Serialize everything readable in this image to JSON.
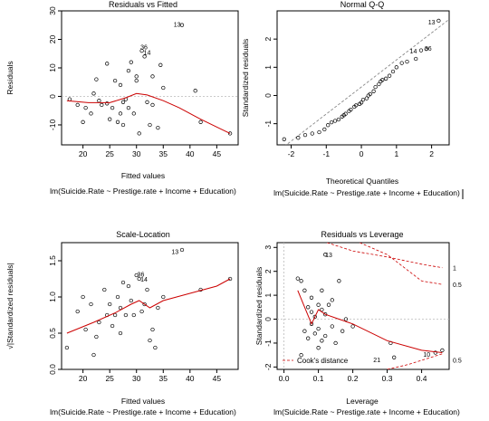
{
  "figure": {
    "background": "#ffffff",
    "line_color": "#cc0000",
    "point_color": "#000000",
    "reference_line_color": "#bbbbbb"
  },
  "chart_data": [
    {
      "id": "p1",
      "type": "scatter",
      "title": "Residuals vs Fitted",
      "xlabel": "Fitted values",
      "ylabel": "Residuals",
      "caption": "lm(Suicide.Rate ~ Prestige.rate + Income + Education)",
      "xlim": [
        16,
        49
      ],
      "ylim": [
        -17,
        30
      ],
      "xticks": [
        20,
        25,
        30,
        35,
        40,
        45
      ],
      "xtick_labels": [
        "20",
        "25",
        "30",
        "35",
        "40",
        "45"
      ],
      "yticks": [
        -10,
        0,
        10,
        20,
        30
      ],
      "ytick_labels": [
        "-10",
        "0",
        "10",
        "20",
        "30"
      ],
      "hline": 0,
      "points": [
        [
          17.5,
          -1
        ],
        [
          19,
          -3
        ],
        [
          20,
          -9
        ],
        [
          20.5,
          -4
        ],
        [
          21.5,
          -6
        ],
        [
          22,
          1
        ],
        [
          22.5,
          6
        ],
        [
          23,
          -1.5
        ],
        [
          23.5,
          -3
        ],
        [
          24.5,
          11.5
        ],
        [
          24.5,
          -2.5
        ],
        [
          25,
          -8
        ],
        [
          25.5,
          -4
        ],
        [
          26,
          5.5
        ],
        [
          26.5,
          -9
        ],
        [
          27,
          -6
        ],
        [
          27,
          4
        ],
        [
          27.5,
          -10
        ],
        [
          27.5,
          -2
        ],
        [
          28,
          -1
        ],
        [
          28.5,
          9
        ],
        [
          28.5,
          -4
        ],
        [
          29,
          12
        ],
        [
          29.5,
          -6
        ],
        [
          30,
          7
        ],
        [
          30,
          5.5
        ],
        [
          30.5,
          -13
        ],
        [
          31,
          16
        ],
        [
          31.5,
          14
        ],
        [
          32,
          -2
        ],
        [
          32.5,
          -10
        ],
        [
          33,
          7
        ],
        [
          33,
          -3
        ],
        [
          34,
          -11
        ],
        [
          34.5,
          11
        ],
        [
          35,
          3
        ],
        [
          38.5,
          25
        ],
        [
          41,
          2
        ],
        [
          42,
          -9
        ],
        [
          47.5,
          -13
        ]
      ],
      "point_labels": [
        {
          "text": "13",
          "x": 37.6,
          "y": 25.4
        },
        {
          "text": "36",
          "x": 31.4,
          "y": 17.4
        },
        {
          "text": "14",
          "x": 32,
          "y": 15.6
        }
      ],
      "smooth": [
        [
          17,
          -1.5
        ],
        [
          21,
          -2.2
        ],
        [
          25,
          -2.2
        ],
        [
          28,
          -0.5
        ],
        [
          30,
          1
        ],
        [
          32,
          0.5
        ],
        [
          35,
          -1.5
        ],
        [
          38,
          -4
        ],
        [
          42,
          -8
        ],
        [
          47.5,
          -13
        ]
      ],
      "smooth_label": "",
      "hline_label": ""
    },
    {
      "id": "p2",
      "type": "scatter",
      "title": "Normal Q-Q",
      "xlabel": "Theoretical Quantiles",
      "ylabel": "Standardized residuals",
      "caption": "lm(Suicide.Rate ~ Prestige.rate + Income + Education)",
      "xlim": [
        -2.4,
        2.5
      ],
      "ylim": [
        -1.75,
        3.0
      ],
      "xticks": [
        -2,
        -1,
        0,
        1,
        2
      ],
      "xtick_labels": [
        "-2",
        "-1",
        "0",
        "1",
        "2"
      ],
      "yticks": [
        -1,
        0,
        1,
        2
      ],
      "ytick_labels": [
        "-1",
        "0",
        "1",
        "2"
      ],
      "diag": [
        [
          -2.4,
          -2.0
        ],
        [
          2.5,
          2.7
        ]
      ],
      "points": [
        [
          -2.2,
          -1.55
        ],
        [
          -1.8,
          -1.5
        ],
        [
          -1.6,
          -1.4
        ],
        [
          -1.4,
          -1.35
        ],
        [
          -1.2,
          -1.3
        ],
        [
          -1.05,
          -1.2
        ],
        [
          -0.95,
          -1.05
        ],
        [
          -0.85,
          -0.95
        ],
        [
          -0.75,
          -0.9
        ],
        [
          -0.65,
          -0.85
        ],
        [
          -0.55,
          -0.75
        ],
        [
          -0.5,
          -0.7
        ],
        [
          -0.45,
          -0.65
        ],
        [
          -0.35,
          -0.55
        ],
        [
          -0.3,
          -0.5
        ],
        [
          -0.2,
          -0.4
        ],
        [
          -0.15,
          -0.35
        ],
        [
          -0.05,
          -0.3
        ],
        [
          0,
          -0.25
        ],
        [
          0.05,
          -0.15
        ],
        [
          0.15,
          -0.1
        ],
        [
          0.2,
          0
        ],
        [
          0.25,
          0.05
        ],
        [
          0.35,
          0.15
        ],
        [
          0.4,
          0.3
        ],
        [
          0.5,
          0.4
        ],
        [
          0.55,
          0.5
        ],
        [
          0.6,
          0.55
        ],
        [
          0.7,
          0.6
        ],
        [
          0.8,
          0.7
        ],
        [
          0.9,
          0.85
        ],
        [
          1.0,
          1.0
        ],
        [
          1.15,
          1.15
        ],
        [
          1.3,
          1.2
        ],
        [
          1.55,
          1.3
        ],
        [
          1.7,
          1.6
        ],
        [
          1.85,
          1.65
        ],
        [
          2.2,
          2.65
        ]
      ],
      "point_labels": [
        {
          "text": "13",
          "x": 2.0,
          "y": 2.62
        },
        {
          "text": "14",
          "x": 1.48,
          "y": 1.58
        },
        {
          "text": "36",
          "x": 1.9,
          "y": 1.68
        }
      ]
    },
    {
      "id": "p3",
      "type": "scatter",
      "title": "Scale-Location",
      "xlabel": "Fitted values",
      "ylabel": "√|Standardized residuals|",
      "caption": "lm(Suicide.Rate ~ Prestige.rate + Income + Education)",
      "xlim": [
        16,
        49
      ],
      "ylim": [
        0,
        1.75
      ],
      "xticks": [
        20,
        25,
        30,
        35,
        40,
        45
      ],
      "xtick_labels": [
        "20",
        "25",
        "30",
        "35",
        "40",
        "45"
      ],
      "yticks": [
        0.0,
        0.5,
        1.0,
        1.5
      ],
      "ytick_labels": [
        "0.0",
        "0.5",
        "1.0",
        "1.5"
      ],
      "points": [
        [
          17,
          0.3
        ],
        [
          19,
          0.8
        ],
        [
          20,
          1.0
        ],
        [
          20.5,
          0.55
        ],
        [
          21.5,
          0.9
        ],
        [
          22,
          0.2
        ],
        [
          22.5,
          0.45
        ],
        [
          23,
          0.65
        ],
        [
          24,
          1.1
        ],
        [
          24.5,
          0.75
        ],
        [
          25,
          0.9
        ],
        [
          25.5,
          0.6
        ],
        [
          26,
          0.75
        ],
        [
          26.5,
          1.0
        ],
        [
          27,
          0.5
        ],
        [
          27,
          0.85
        ],
        [
          27.5,
          1.2
        ],
        [
          28,
          0.75
        ],
        [
          28.5,
          1.15
        ],
        [
          29,
          0.95
        ],
        [
          29.5,
          0.75
        ],
        [
          30,
          1.3
        ],
        [
          30.5,
          1.25
        ],
        [
          31,
          0.8
        ],
        [
          31.5,
          0.9
        ],
        [
          32,
          1.1
        ],
        [
          32.5,
          0.4
        ],
        [
          33,
          0.55
        ],
        [
          33.5,
          0.3
        ],
        [
          34,
          0.85
        ],
        [
          35,
          1.0
        ],
        [
          38.5,
          1.65
        ],
        [
          42,
          1.1
        ],
        [
          47.5,
          1.25
        ]
      ],
      "point_labels": [
        {
          "text": "13",
          "x": 37.2,
          "y": 1.63
        },
        {
          "text": "36",
          "x": 30.8,
          "y": 1.32
        },
        {
          "text": "14",
          "x": 31.4,
          "y": 1.25
        }
      ],
      "smooth": [
        [
          17,
          0.5
        ],
        [
          22,
          0.65
        ],
        [
          26,
          0.78
        ],
        [
          29,
          0.9
        ],
        [
          30.5,
          0.95
        ],
        [
          32.5,
          0.85
        ],
        [
          35,
          0.95
        ],
        [
          40,
          1.05
        ],
        [
          45,
          1.15
        ],
        [
          47.5,
          1.25
        ]
      ]
    },
    {
      "id": "p4",
      "type": "scatter",
      "title": "Residuals vs Leverage",
      "xlabel": "Leverage",
      "ylabel": "Standardized residuals",
      "caption": "lm(Suicide.Rate ~ Prestige.rate + Income + Education)",
      "xlim": [
        -0.02,
        0.48
      ],
      "ylim": [
        -2.1,
        3.2
      ],
      "xticks": [
        0.0,
        0.1,
        0.2,
        0.3,
        0.4
      ],
      "xtick_labels": [
        "0.0",
        "0.1",
        "0.2",
        "0.3",
        "0.4"
      ],
      "yticks": [
        -2,
        -1,
        0,
        1,
        2,
        3
      ],
      "ytick_labels": [
        "-2",
        "-1",
        "0",
        "1",
        "2",
        "3"
      ],
      "hline": 0,
      "vline": 0,
      "points": [
        [
          0.04,
          1.7
        ],
        [
          0.05,
          1.6
        ],
        [
          0.06,
          1.2
        ],
        [
          0.06,
          -0.5
        ],
        [
          0.07,
          0.5
        ],
        [
          0.07,
          -0.8
        ],
        [
          0.08,
          0.3
        ],
        [
          0.08,
          -0.2
        ],
        [
          0.08,
          0.9
        ],
        [
          0.09,
          -0.6
        ],
        [
          0.09,
          0.1
        ],
        [
          0.1,
          0.6
        ],
        [
          0.1,
          -0.4
        ],
        [
          0.1,
          -1.2
        ],
        [
          0.11,
          0.4
        ],
        [
          0.11,
          -0.9
        ],
        [
          0.12,
          0.2
        ],
        [
          0.12,
          -0.7
        ],
        [
          0.13,
          0.6
        ],
        [
          0.14,
          -0.3
        ],
        [
          0.14,
          0.8
        ],
        [
          0.15,
          -1.0
        ],
        [
          0.16,
          1.6
        ],
        [
          0.17,
          -0.5
        ],
        [
          0.18,
          0.0
        ],
        [
          0.2,
          -0.3
        ],
        [
          0.12,
          2.7
        ],
        [
          0.31,
          -1.0
        ],
        [
          0.32,
          -1.6
        ],
        [
          0.44,
          -1.4
        ],
        [
          0.46,
          -1.3
        ],
        [
          0.05,
          -1.5
        ],
        [
          0.11,
          1.2
        ]
      ],
      "point_labels": [
        {
          "text": "13",
          "x": 0.13,
          "y": 2.7
        },
        {
          "text": "21",
          "x": 0.27,
          "y": -1.68
        },
        {
          "text": "10",
          "x": 0.415,
          "y": -1.45
        }
      ],
      "smooth": [
        [
          0.04,
          1.2
        ],
        [
          0.08,
          -0.2
        ],
        [
          0.1,
          0.4
        ],
        [
          0.12,
          0.2
        ],
        [
          0.16,
          0.0
        ],
        [
          0.2,
          -0.2
        ],
        [
          0.3,
          -0.9
        ],
        [
          0.4,
          -1.3
        ],
        [
          0.46,
          -1.4
        ]
      ],
      "cook_lines": [
        {
          "level": "1",
          "sign": 1,
          "pts": [
            [
              0.125,
              3.2
            ],
            [
              0.2,
              2.85
            ],
            [
              0.3,
              2.6
            ],
            [
              0.4,
              2.3
            ],
            [
              0.46,
              2.15
            ]
          ]
        },
        {
          "level": "0.5",
          "sign": 1,
          "pts": [
            [
              0.22,
              3.2
            ],
            [
              0.3,
              2.7
            ],
            [
              0.4,
              1.6
            ],
            [
              0.46,
              1.45
            ]
          ]
        },
        {
          "level": "0.5",
          "sign": -1,
          "pts": [
            [
              0.3,
              -2.1
            ],
            [
              0.36,
              -1.9
            ],
            [
              0.46,
              -1.45
            ]
          ]
        }
      ],
      "right_labels": [
        {
          "text": "1",
          "y": 2.15,
          "color": "#000000"
        },
        {
          "text": "0.5",
          "y": 1.45,
          "color": "#cc0000"
        },
        {
          "text": "0.5",
          "y": -1.7,
          "color": "#cc0000"
        }
      ],
      "legend": {
        "text": "Cook's distance",
        "placement": "bottom-left"
      }
    }
  ]
}
